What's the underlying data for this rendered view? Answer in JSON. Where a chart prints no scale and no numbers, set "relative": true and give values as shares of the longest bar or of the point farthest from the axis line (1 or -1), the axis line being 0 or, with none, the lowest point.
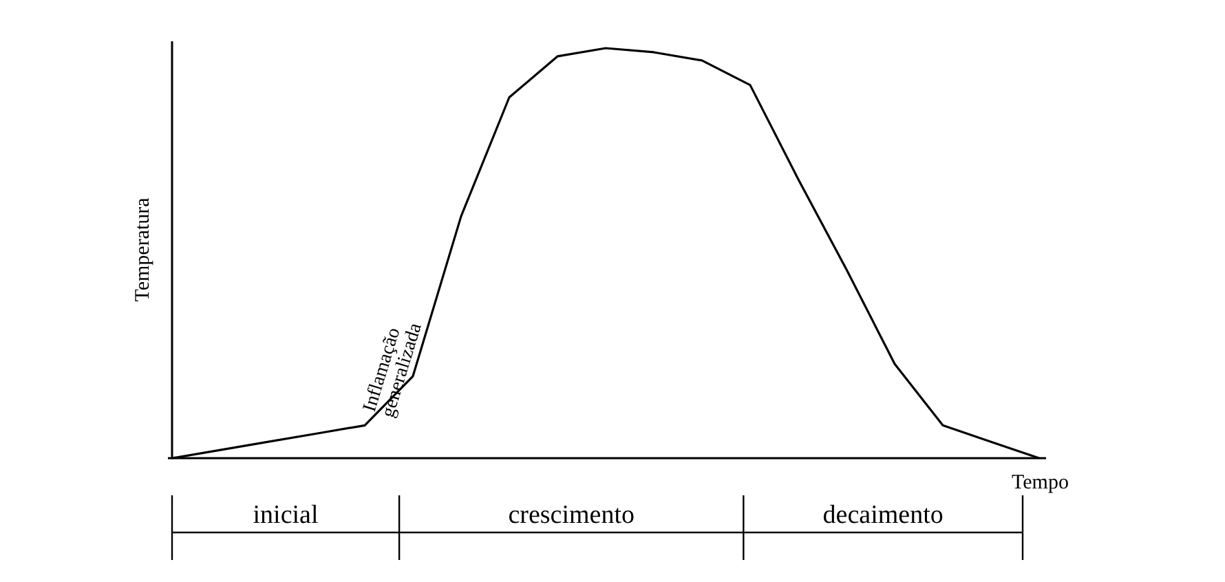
{
  "chart_data": {
    "type": "line",
    "relative": true,
    "xlabel": "Tempo",
    "ylabel": "Temperatura",
    "color": "#000000",
    "categories": [
      null,
      null,
      null,
      null,
      null,
      null,
      null,
      null,
      null,
      null,
      null,
      null,
      null,
      null,
      null,
      null,
      null,
      null,
      null
    ],
    "values": [
      0,
      0.02,
      0.04,
      0.06,
      0.08,
      0.2,
      0.59,
      0.88,
      0.98,
      1,
      0.99,
      0.97,
      0.91,
      0.68,
      0.46,
      0.23,
      0.08,
      0.04,
      0
    ],
    "annotations": [
      "Inflamação generalizada",
      "inicial",
      "crescimento",
      "decaimento"
    ]
  }
}
